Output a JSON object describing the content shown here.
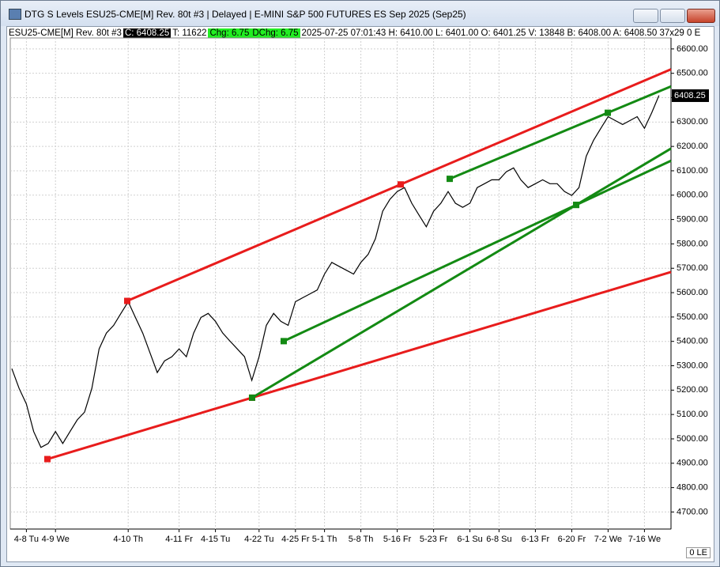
{
  "window": {
    "title": "DTG S Levels ESU25-CME[M]  Rev. 80t #3 | Delayed | E-MINI S&P 500 FUTURES ES Sep 2025 (Sep25)",
    "status": "0 LE"
  },
  "info_bar": {
    "symbol": "ESU25-CME[M]  Rev. 80t #3",
    "close": "C: 6408.25",
    "ticks": "T: 11622",
    "change": "Chg: 6.75",
    "day_change": "DChg: 6.75",
    "details": "2025-07-25 07:01:43 H: 6410.00 L: 6401.00 O: 6401.25 V: 13848 B: 6408.00 A: 6408.50 37x29 0 E"
  },
  "chart_data": {
    "type": "line",
    "color": "#000000",
    "grid": true,
    "categories": [
      null,
      null,
      "4-8 Tu",
      null,
      null,
      null,
      "4-9 We",
      null,
      null,
      null,
      null,
      null,
      null,
      null,
      null,
      null,
      "4-10 Th",
      null,
      null,
      null,
      null,
      null,
      null,
      "4-11 Fr",
      null,
      null,
      null,
      null,
      "4-15 Tu",
      null,
      null,
      null,
      null,
      null,
      "4-22 Tu",
      null,
      null,
      null,
      null,
      "4-25 Fr",
      null,
      null,
      null,
      "5-1 Th",
      null,
      null,
      null,
      null,
      "5-8 Th",
      null,
      null,
      null,
      null,
      "5-16 Fr",
      null,
      null,
      null,
      null,
      "5-23 Fr",
      null,
      null,
      null,
      null,
      "6-1 Su",
      null,
      null,
      null,
      "6-8 Su",
      null,
      null,
      null,
      null,
      "6-13 Fr",
      null,
      null,
      null,
      null,
      "6-20 Fr",
      null,
      null,
      null,
      null,
      "7-2 We",
      null,
      null,
      null,
      null,
      "7-16 We",
      null,
      null
    ],
    "values": [
      5288,
      5207,
      5143,
      5030,
      4965,
      4981,
      5030,
      4981,
      5030,
      5078,
      5110,
      5207,
      5369,
      5434,
      5466,
      5515,
      5563,
      5498,
      5434,
      5353,
      5272,
      5320,
      5337,
      5369,
      5337,
      5434,
      5498,
      5515,
      5482,
      5434,
      5401,
      5369,
      5337,
      5240,
      5337,
      5466,
      5515,
      5482,
      5466,
      5563,
      5579,
      5595,
      5611,
      5676,
      5724,
      5708,
      5692,
      5676,
      5724,
      5757,
      5821,
      5934,
      5983,
      6015,
      6031,
      5967,
      5918,
      5870,
      5934,
      5967,
      6015,
      5967,
      5950,
      5967,
      6031,
      6047,
      6063,
      6063,
      6096,
      6112,
      6063,
      6031,
      6047,
      6063,
      6047,
      6047,
      6015,
      5999,
      6031,
      6160,
      6225,
      6274,
      6322,
      6306,
      6290,
      6306,
      6322,
      6274,
      6338,
      6409
    ],
    "ylim": [
      4630,
      6645
    ],
    "yticks": [
      {
        "value": 4700,
        "label": "4700.00"
      },
      {
        "value": 4800,
        "label": "4800.00"
      },
      {
        "value": 4900,
        "label": "4900.00"
      },
      {
        "value": 5000,
        "label": "5000.00"
      },
      {
        "value": 5100,
        "label": "5100.00"
      },
      {
        "value": 5200,
        "label": "5200.00"
      },
      {
        "value": 5300,
        "label": "5300.00"
      },
      {
        "value": 5400,
        "label": "5400.00"
      },
      {
        "value": 5500,
        "label": "5500.00"
      },
      {
        "value": 5600,
        "label": "5600.00"
      },
      {
        "value": 5700,
        "label": "5700.00"
      },
      {
        "value": 5800,
        "label": "5800.00"
      },
      {
        "value": 5900,
        "label": "5900.00"
      },
      {
        "value": 6000,
        "label": "6000.00"
      },
      {
        "value": 6100,
        "label": "6100.00"
      },
      {
        "value": 6200,
        "label": "6200.00"
      },
      {
        "value": 6300,
        "label": "6300.00"
      },
      {
        "value": 6400,
        "label": "6400.00"
      },
      {
        "value": 6500,
        "label": "6500.00"
      },
      {
        "value": 6600,
        "label": "6600.00"
      }
    ],
    "last_value": 6408.25,
    "trendlines": [
      {
        "color": "#e81c1c",
        "points": [
          [
            15.87,
            5566
          ],
          [
            53.48,
            6044
          ]
        ]
      },
      {
        "color": "#e81c1c",
        "points": [
          [
            4.89,
            4917
          ],
          [
            33.04,
            5169
          ]
        ]
      },
      {
        "color": "#138a13",
        "points": [
          [
            33.04,
            5169
          ],
          [
            77.61,
            5960
          ]
        ]
      },
      {
        "color": "#138a13",
        "points": [
          [
            37.39,
            5401
          ],
          [
            77.61,
            5960
          ]
        ]
      },
      {
        "color": "#138a13",
        "points": [
          [
            60.22,
            6067
          ],
          [
            81.96,
            6338
          ]
        ]
      }
    ]
  }
}
